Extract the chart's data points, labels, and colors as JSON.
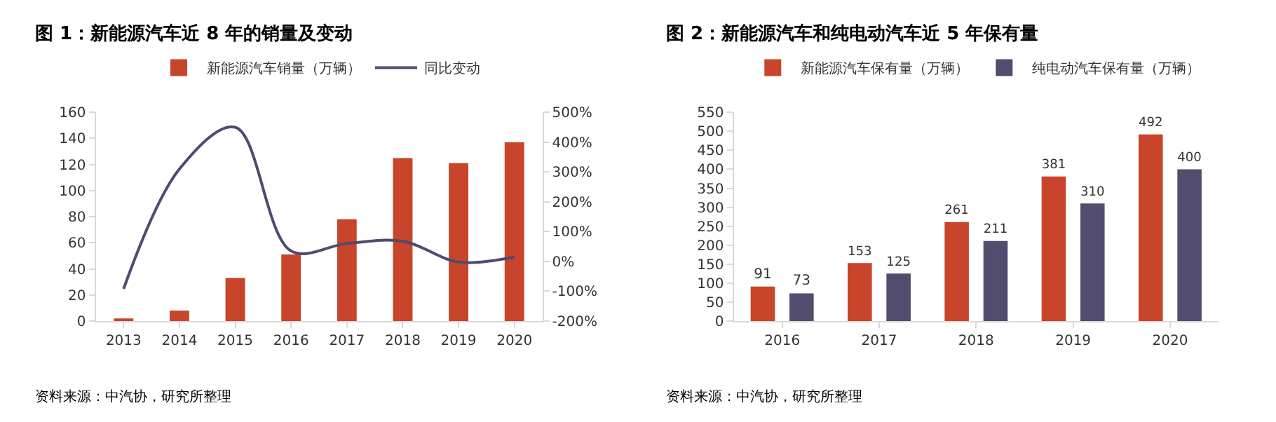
{
  "chart_data": [
    {
      "type": "bar",
      "title": "图 1：新能源汽车近 8 年的销量及变动",
      "categories": [
        "2013",
        "2014",
        "2015",
        "2016",
        "2017",
        "2018",
        "2019",
        "2020"
      ],
      "series": [
        {
          "name": "新能源汽车销量（万辆）",
          "color": "#c8442a",
          "values": [
            2,
            8,
            33,
            51,
            78,
            125,
            121,
            137
          ]
        },
        {
          "name": "同比变动",
          "type": "line",
          "axis": "y2",
          "color": "#4f4b6e",
          "values": [
            -92,
            310,
            450,
            35,
            60,
            68,
            -2,
            15
          ]
        }
      ],
      "ylim": [
        0,
        160
      ],
      "yticks": [
        0,
        20,
        40,
        60,
        80,
        100,
        120,
        140,
        160
      ],
      "y2lim": [
        -200,
        500
      ],
      "y2ticks": [
        {
          "value": -200,
          "label": "-200%"
        },
        {
          "value": -100,
          "label": "-100%"
        },
        {
          "value": 0,
          "label": "0%"
        },
        {
          "value": 100,
          "label": "100%"
        },
        {
          "value": 200,
          "label": "200%"
        },
        {
          "value": 300,
          "label": "300%"
        },
        {
          "value": 400,
          "label": "400%"
        },
        {
          "value": 500,
          "label": "500%"
        }
      ],
      "legend": "top",
      "marker": "none",
      "line_style": "solid",
      "annotations": [
        "资料来源：中汽协，研究所整理"
      ]
    },
    {
      "type": "bar",
      "title": "图 2：新能源汽车和纯电动汽车近 5 年保有量",
      "categories": [
        "2016",
        "2017",
        "2018",
        "2019",
        "2020"
      ],
      "series": [
        {
          "name": "新能源汽车保有量（万辆）",
          "color": "#c8442a",
          "values": [
            91,
            153,
            261,
            381,
            492
          ]
        },
        {
          "name": "纯电动汽车保有量（万辆）",
          "color": "#524d6e",
          "values": [
            73,
            125,
            211,
            310,
            400
          ]
        }
      ],
      "ylim": [
        0,
        550
      ],
      "yticks": [
        0,
        50,
        100,
        150,
        200,
        250,
        300,
        350,
        400,
        450,
        500,
        550
      ],
      "legend": "top",
      "data_labels": true,
      "annotations": [
        "资料来源：中汽协，研究所整理"
      ]
    }
  ]
}
